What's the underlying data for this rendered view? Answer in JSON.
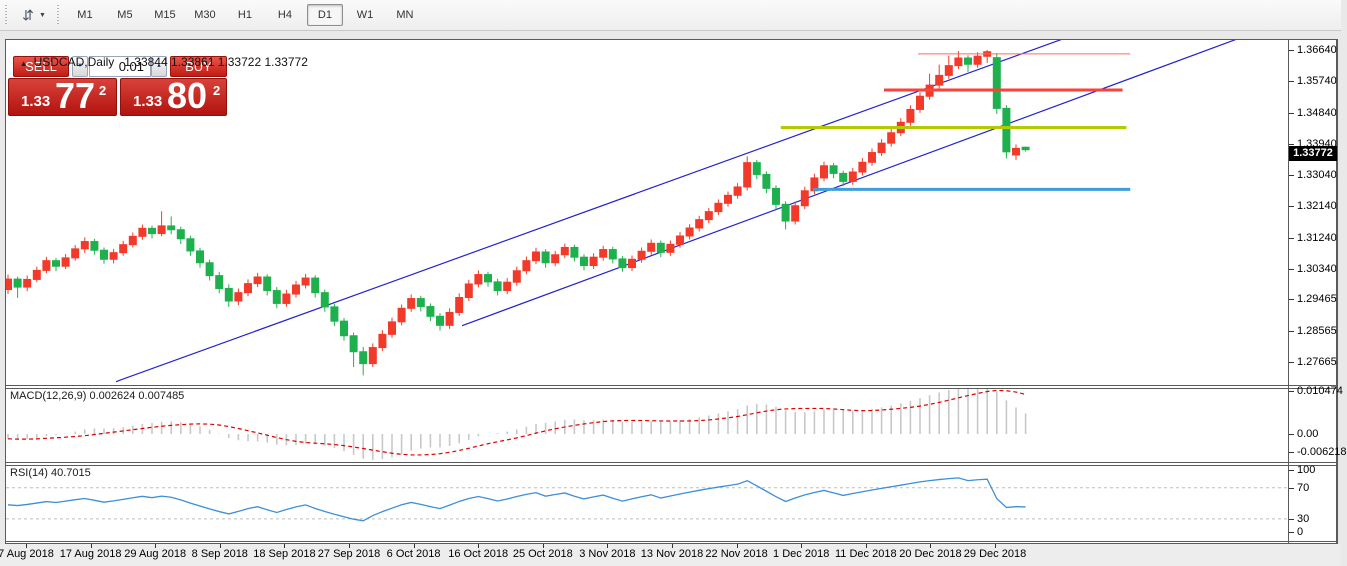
{
  "toolbar": {
    "timeframes": [
      "M1",
      "M5",
      "M15",
      "M30",
      "H1",
      "H4",
      "D1",
      "W1",
      "MN"
    ],
    "active_timeframe": "D1"
  },
  "icons": {
    "toolbar_glyph": "⇵",
    "caret_down": "▼",
    "spinner_up": "▲",
    "spinner_down": "▼",
    "collapse_arrow": "▲"
  },
  "window": {
    "title_symbol": "USDCAD,Daily",
    "ohlc": {
      "open": "1.33844",
      "high": "1.33861",
      "low": "1.33722",
      "close": "1.33772"
    }
  },
  "trade_panel": {
    "sell_label": "SELL",
    "buy_label": "BUY",
    "volume": "0.01",
    "sell_price": {
      "prefix": "1.33",
      "big": "77",
      "sup": "2"
    },
    "buy_price": {
      "prefix": "1.33",
      "big": "80",
      "sup": "2"
    }
  },
  "chart_data": {
    "type": "candlestick",
    "symbol": "USDCAD",
    "timeframe": "Daily",
    "grid": false,
    "x_labels": [
      "7 Aug 2018",
      "17 Aug 2018",
      "29 Aug 2018",
      "8 Sep 2018",
      "18 Sep 2018",
      "27 Sep 2018",
      "6 Oct 2018",
      "16 Oct 2018",
      "25 Oct 2018",
      "3 Nov 2018",
      "13 Nov 2018",
      "22 Nov 2018",
      "1 Dec 2018",
      "11 Dec 2018",
      "20 Dec 2018",
      "29 Dec 2018"
    ],
    "price_axis_labels": [
      "1.36640",
      "1.35740",
      "1.34840",
      "1.33940",
      "1.33040",
      "1.32140",
      "1.31240",
      "1.30340",
      "1.29465",
      "1.28565",
      "1.27665"
    ],
    "current_price": "1.33772",
    "colors": {
      "up": "#f23a2a",
      "down": "#1fb04e",
      "wick_up": "#f23a2a",
      "wick_down": "#1fb04e",
      "trendline": "#2323cf",
      "hline_thin_red": "#ff6a5e",
      "hline_thick_red": "#f9423a",
      "hline_yellow": "#b4ca00",
      "hline_blue": "#3f9ddb",
      "macd_hist": "#c8c8c8",
      "macd_signal": "#dd0000",
      "rsi_line": "#3d8fd9",
      "rsi_grid": "#bdbdbd"
    },
    "candles": [
      [
        1.2975,
        1.3018,
        1.2962,
        1.3005
      ],
      [
        1.3005,
        1.3012,
        1.2951,
        1.2982
      ],
      [
        1.2982,
        1.3015,
        1.297,
        1.3004
      ],
      [
        1.3004,
        1.3041,
        1.2996,
        1.303
      ],
      [
        1.303,
        1.3069,
        1.3022,
        1.3058
      ],
      [
        1.3058,
        1.3066,
        1.3028,
        1.3042
      ],
      [
        1.3042,
        1.3077,
        1.3034,
        1.3066
      ],
      [
        1.3066,
        1.3103,
        1.3058,
        1.3092
      ],
      [
        1.3092,
        1.3125,
        1.308,
        1.3113
      ],
      [
        1.3113,
        1.3121,
        1.3075,
        1.3088
      ],
      [
        1.3088,
        1.3096,
        1.3049,
        1.3062
      ],
      [
        1.3062,
        1.3092,
        1.305,
        1.3081
      ],
      [
        1.3081,
        1.3115,
        1.3072,
        1.3104
      ],
      [
        1.3104,
        1.3139,
        1.3096,
        1.3128
      ],
      [
        1.3128,
        1.3162,
        1.3118,
        1.3151
      ],
      [
        1.3151,
        1.3159,
        1.3122,
        1.3136
      ],
      [
        1.3136,
        1.32,
        1.3128,
        1.3158
      ],
      [
        1.3158,
        1.3185,
        1.3134,
        1.3147
      ],
      [
        1.3147,
        1.3156,
        1.3106,
        1.3121
      ],
      [
        1.3121,
        1.313,
        1.3072,
        1.3086
      ],
      [
        1.3086,
        1.3095,
        1.3038,
        1.3052
      ],
      [
        1.3052,
        1.3061,
        1.3001,
        1.3015
      ],
      [
        1.3015,
        1.3026,
        1.2964,
        1.2978
      ],
      [
        1.2978,
        1.299,
        1.2925,
        1.2942
      ],
      [
        1.2942,
        1.2978,
        1.293,
        1.2966
      ],
      [
        1.2966,
        1.3004,
        1.2956,
        1.2992
      ],
      [
        1.2992,
        1.3023,
        1.2982,
        1.3011
      ],
      [
        1.3011,
        1.3019,
        1.2958,
        1.2972
      ],
      [
        1.2972,
        1.2982,
        1.2921,
        1.2935
      ],
      [
        1.2935,
        1.2974,
        1.2925,
        1.2962
      ],
      [
        1.2962,
        1.3,
        1.2952,
        1.2988
      ],
      [
        1.2988,
        1.302,
        1.2978,
        1.3008
      ],
      [
        1.3008,
        1.3016,
        1.2952,
        1.2966
      ],
      [
        1.2966,
        1.2975,
        1.2911,
        1.2925
      ],
      [
        1.2925,
        1.2934,
        1.287,
        1.2884
      ],
      [
        1.2884,
        1.2893,
        1.2828,
        1.2842
      ],
      [
        1.2842,
        1.2851,
        1.2752,
        1.2796
      ],
      [
        1.2796,
        1.281,
        1.2728,
        1.2762
      ],
      [
        1.2762,
        1.282,
        1.2752,
        1.2808
      ],
      [
        1.2808,
        1.2858,
        1.2798,
        1.2846
      ],
      [
        1.2846,
        1.2894,
        1.2836,
        1.2882
      ],
      [
        1.2882,
        1.2932,
        1.2872,
        1.2921
      ],
      [
        1.2921,
        1.2961,
        1.2911,
        1.2949
      ],
      [
        1.2949,
        1.2957,
        1.2912,
        1.2926
      ],
      [
        1.2926,
        1.2935,
        1.2884,
        1.2898
      ],
      [
        1.2898,
        1.2907,
        1.2857,
        1.2872
      ],
      [
        1.2872,
        1.2921,
        1.2862,
        1.2909
      ],
      [
        1.2909,
        1.2964,
        1.2899,
        1.2952
      ],
      [
        1.2952,
        1.3003,
        1.2942,
        1.2991
      ],
      [
        1.2991,
        1.303,
        1.2981,
        1.3018
      ],
      [
        1.3018,
        1.3026,
        1.2983,
        1.2997
      ],
      [
        1.2997,
        1.3006,
        1.2958,
        1.2972
      ],
      [
        1.2972,
        1.3008,
        1.2962,
        1.2996
      ],
      [
        1.2996,
        1.3041,
        1.2986,
        1.3029
      ],
      [
        1.3029,
        1.307,
        1.3019,
        1.3058
      ],
      [
        1.3058,
        1.3095,
        1.3048,
        1.3083
      ],
      [
        1.3083,
        1.3091,
        1.3038,
        1.3052
      ],
      [
        1.3052,
        1.3086,
        1.3042,
        1.3075
      ],
      [
        1.3075,
        1.3107,
        1.3065,
        1.3096
      ],
      [
        1.3096,
        1.3104,
        1.3056,
        1.3068
      ],
      [
        1.3068,
        1.3076,
        1.303,
        1.3044
      ],
      [
        1.3044,
        1.3079,
        1.3034,
        1.3068
      ],
      [
        1.3068,
        1.3101,
        1.3058,
        1.309
      ],
      [
        1.309,
        1.3098,
        1.305,
        1.3063
      ],
      [
        1.3063,
        1.3071,
        1.3026,
        1.3038
      ],
      [
        1.3038,
        1.3073,
        1.3028,
        1.3062
      ],
      [
        1.3062,
        1.3096,
        1.3052,
        1.3085
      ],
      [
        1.3085,
        1.3119,
        1.3075,
        1.3108
      ],
      [
        1.3108,
        1.3116,
        1.3068,
        1.3082
      ],
      [
        1.3082,
        1.3116,
        1.3072,
        1.3105
      ],
      [
        1.3105,
        1.314,
        1.3095,
        1.3129
      ],
      [
        1.3129,
        1.3163,
        1.3119,
        1.3152
      ],
      [
        1.3152,
        1.3187,
        1.3142,
        1.3176
      ],
      [
        1.3176,
        1.321,
        1.3166,
        1.3199
      ],
      [
        1.3199,
        1.3234,
        1.3189,
        1.3223
      ],
      [
        1.3223,
        1.3257,
        1.3213,
        1.3246
      ],
      [
        1.3246,
        1.3281,
        1.3236,
        1.327
      ],
      [
        1.327,
        1.3358,
        1.326,
        1.334
      ],
      [
        1.334,
        1.3348,
        1.3292,
        1.3306
      ],
      [
        1.3306,
        1.3315,
        1.3252,
        1.3266
      ],
      [
        1.3266,
        1.3275,
        1.3206,
        1.322
      ],
      [
        1.322,
        1.3229,
        1.3148,
        1.3172
      ],
      [
        1.3172,
        1.3228,
        1.3162,
        1.3216
      ],
      [
        1.3216,
        1.3271,
        1.3206,
        1.3259
      ],
      [
        1.3259,
        1.3308,
        1.3249,
        1.3296
      ],
      [
        1.3296,
        1.3343,
        1.3286,
        1.3331
      ],
      [
        1.3331,
        1.3339,
        1.3295,
        1.3309
      ],
      [
        1.3309,
        1.3317,
        1.3272,
        1.3286
      ],
      [
        1.3286,
        1.3325,
        1.3276,
        1.3313
      ],
      [
        1.3313,
        1.3353,
        1.3303,
        1.3341
      ],
      [
        1.3341,
        1.3381,
        1.3331,
        1.3369
      ],
      [
        1.3369,
        1.3408,
        1.3359,
        1.3396
      ],
      [
        1.3396,
        1.3438,
        1.3386,
        1.3426
      ],
      [
        1.3426,
        1.3468,
        1.3416,
        1.3456
      ],
      [
        1.3456,
        1.3505,
        1.3446,
        1.3493
      ],
      [
        1.3493,
        1.3543,
        1.3483,
        1.3531
      ],
      [
        1.3531,
        1.3596,
        1.3521,
        1.3563
      ],
      [
        1.3563,
        1.3622,
        1.3553,
        1.3591
      ],
      [
        1.3591,
        1.3648,
        1.3581,
        1.3619
      ],
      [
        1.3619,
        1.3661,
        1.3609,
        1.3641
      ],
      [
        1.3641,
        1.3649,
        1.3601,
        1.3623
      ],
      [
        1.3623,
        1.3658,
        1.3613,
        1.3646
      ],
      [
        1.3646,
        1.3664,
        1.3627,
        1.3659
      ],
      [
        1.3642,
        1.3655,
        1.348,
        1.3496
      ],
      [
        1.3496,
        1.3505,
        1.3352,
        1.3371
      ],
      [
        1.3362,
        1.3392,
        1.3348,
        1.3381
      ],
      [
        1.33844,
        1.33861,
        1.33722,
        1.33772
      ]
    ],
    "trendlines": [
      {
        "i1": 11.25,
        "p1": 1.271,
        "i2": 110.6,
        "p2": 1.3703
      },
      {
        "i1": 47.3,
        "p1": 1.2871,
        "i2": 128.85,
        "p2": 1.3704
      }
    ],
    "hlines": [
      {
        "price": 1.3653,
        "i1": 94.8,
        "i2": 116.9,
        "width": 1,
        "color_key": "hline_thin_red"
      },
      {
        "price": 1.3549,
        "i1": 91.25,
        "i2": 116.1,
        "width": 3,
        "color_key": "hline_thick_red"
      },
      {
        "price": 1.3441,
        "i1": 80.5,
        "i2": 116.5,
        "width": 3,
        "color_key": "hline_yellow"
      },
      {
        "price": 1.3263,
        "i1": 83.85,
        "i2": 116.9,
        "width": 3,
        "color_key": "hline_blue"
      }
    ],
    "indicators": {
      "macd": {
        "label": "MACD(12,26,9)",
        "current_values": "0.002624 0.007485",
        "axis_labels": [
          "0.010474",
          "0.00",
          "-0.006218"
        ],
        "fast": 12,
        "slow": 26,
        "signal": 9,
        "ymax": 0.010474,
        "ymin": -0.006218
      },
      "rsi": {
        "label": "RSI(14)",
        "current_value": "40.7015",
        "axis_labels": [
          "100",
          "70",
          "30",
          "0"
        ],
        "period": 14,
        "levels": [
          70,
          30
        ]
      }
    }
  }
}
